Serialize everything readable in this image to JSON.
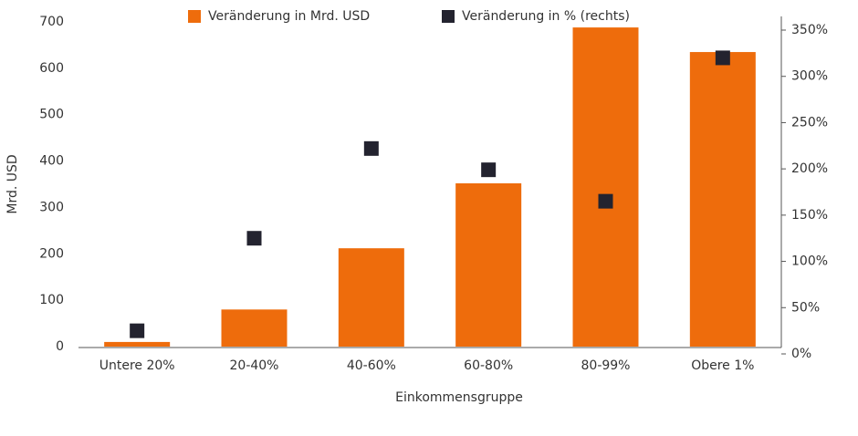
{
  "chart_data": {
    "type": "bar",
    "categories": [
      "Untere 20%",
      "20-40%",
      "40-60%",
      "60-80%",
      "80-99%",
      "Obere 1%"
    ],
    "series": [
      {
        "name": "Veränderung in Mrd. USD",
        "color": "#ee6c0c",
        "type": "bar",
        "values": [
          10,
          80,
          212,
          352,
          688,
          635
        ]
      },
      {
        "name": "Veränderung in % (rechts)",
        "color": "#23232f",
        "type": "scatter",
        "axis": "y2",
        "values": [
          25,
          125,
          222,
          199,
          165,
          320
        ]
      }
    ],
    "y_label": "Mrd. USD",
    "x_label": "Einkommensgruppe",
    "ylim": [
      0,
      700
    ],
    "yticks": [
      0,
      100,
      200,
      300,
      400,
      500,
      600,
      700
    ],
    "y2lim": [
      0,
      350
    ],
    "y2ticks": [
      {
        "value": 0,
        "label": "0%"
      },
      {
        "value": 50,
        "label": "50%"
      },
      {
        "value": 100,
        "label": "100%"
      },
      {
        "value": 150,
        "label": "150%"
      },
      {
        "value": 200,
        "label": "200%"
      },
      {
        "value": 250,
        "label": "250%"
      },
      {
        "value": 300,
        "label": "300%"
      },
      {
        "value": 350,
        "label": "350%"
      }
    ],
    "legend": "top"
  }
}
